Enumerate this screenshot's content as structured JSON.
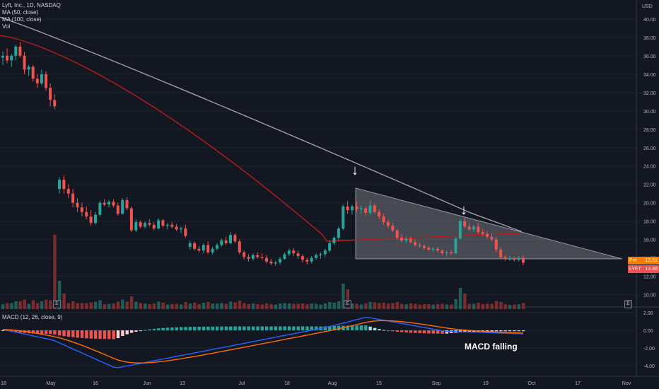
{
  "header": {
    "symbol_line": "Lyft, Inc., 1D, NASDAQ",
    "ma50_label": "MA (50, close)",
    "ma100_label": "MA (100, close)",
    "vol_label": "Vol",
    "macd_label": "MACD (12, 26, close, 9)",
    "currency": "USD"
  },
  "price_tags": {
    "pre": {
      "label": "Pre",
      "value": "13.51",
      "color": "#f57c00"
    },
    "last": {
      "label": "LYFT",
      "value": "13.48",
      "color": "#ef5350"
    }
  },
  "badges": {
    "earnings": "E"
  },
  "annotation": {
    "text": "MACD falling"
  },
  "arrows": {
    "glyph": "↓"
  },
  "colors": {
    "background": "#131722",
    "up": "#26a69a",
    "down": "#ef5350",
    "ma50": "#b71c1c",
    "ma100": "#9e9e9e",
    "macd_line": "#2962ff",
    "signal_line": "#ff6d00",
    "triangle": "#ffffff"
  },
  "chart_data": {
    "type": "candlestick",
    "y_ticks": [
      "40.00",
      "38.00",
      "36.00",
      "34.00",
      "32.00",
      "30.00",
      "28.00",
      "26.00",
      "24.00",
      "22.00",
      "20.00",
      "18.00",
      "16.00",
      "14.00",
      "12.00",
      "10.00"
    ],
    "macd_ticks": [
      "2.00",
      "0.00",
      "-2.00",
      "-4.00"
    ],
    "x_labels": [
      "18",
      "May",
      "16",
      "Jun",
      "13",
      "Jul",
      "18",
      "Aug",
      "15",
      "Sep",
      "19",
      "Oct",
      "17",
      "Nov"
    ],
    "ohlc": [
      [
        35.8,
        36.5,
        35,
        36
      ],
      [
        36,
        36.8,
        35.2,
        35.5
      ],
      [
        35.5,
        36.2,
        34.8,
        36
      ],
      [
        36,
        37.2,
        35.5,
        37
      ],
      [
        37,
        37.5,
        35.8,
        36
      ],
      [
        36,
        36.4,
        34,
        34.5
      ],
      [
        34.5,
        35,
        33.8,
        34.8
      ],
      [
        34.8,
        35,
        33.2,
        33.5
      ],
      [
        33.5,
        34,
        32.5,
        33
      ],
      [
        33,
        34.5,
        32.8,
        34
      ],
      [
        34,
        34.3,
        32.2,
        32.5
      ],
      [
        32.5,
        33,
        30.5,
        31.2
      ],
      [
        31.2,
        31.8,
        30.2,
        30.5
      ],
      [
        21.5,
        22.8,
        21.0,
        22.5
      ],
      [
        22.5,
        23,
        21.0,
        21.5
      ],
      [
        21.5,
        22,
        20.5,
        21
      ],
      [
        21,
        21.5,
        19.5,
        20
      ],
      [
        20,
        20.5,
        19,
        19.5
      ],
      [
        19.5,
        20,
        18.5,
        19
      ],
      [
        19,
        19.6,
        18.2,
        18.5
      ],
      [
        18.5,
        19.2,
        17.5,
        17.8
      ],
      [
        17.8,
        19,
        17.6,
        18.7
      ],
      [
        18.7,
        20.2,
        18.5,
        20
      ],
      [
        20,
        20.4,
        19.6,
        19.8
      ],
      [
        19.8,
        20.3,
        19.5,
        20.1
      ],
      [
        20.1,
        20.4,
        19.5,
        19.7
      ],
      [
        19.7,
        20,
        18.6,
        18.8
      ],
      [
        18.8,
        20.5,
        18.7,
        20.3
      ],
      [
        20.3,
        20.6,
        19.2,
        19.4
      ],
      [
        19.4,
        19.6,
        16.8,
        17
      ],
      [
        17,
        18.2,
        16.8,
        17.9
      ],
      [
        17.9,
        18.1,
        17.2,
        17.4
      ],
      [
        17.4,
        18,
        17.2,
        17.8
      ],
      [
        17.8,
        18.2,
        17.4,
        17.6
      ],
      [
        17.6,
        17.9,
        17,
        17.2
      ],
      [
        17.2,
        18.3,
        17.1,
        18.1
      ],
      [
        18.1,
        18.2,
        17.3,
        17.5
      ],
      [
        17.5,
        17.8,
        17.1,
        17.6
      ],
      [
        17.6,
        17.9,
        17.2,
        17.4
      ],
      [
        17.4,
        17.7,
        16.9,
        17.1
      ],
      [
        17.1,
        17.4,
        16.7,
        17.2
      ],
      [
        17.2,
        17.6,
        16.2,
        16.4
      ],
      [
        15.2,
        15.9,
        14.9,
        15.6
      ],
      [
        15.6,
        15.8,
        14.8,
        15
      ],
      [
        15,
        15.3,
        14.6,
        14.8
      ],
      [
        14.8,
        15.6,
        14.5,
        15.4
      ],
      [
        15.4,
        15.8,
        14.4,
        14.6
      ],
      [
        14.6,
        15.2,
        14.4,
        15
      ],
      [
        15,
        15.6,
        14.8,
        15.4
      ],
      [
        15.4,
        16.1,
        15.2,
        15.9
      ],
      [
        15.9,
        16.3,
        15.4,
        15.6
      ],
      [
        15.6,
        16.8,
        15.5,
        16.5
      ],
      [
        16.5,
        16.7,
        15.6,
        15.8
      ],
      [
        15.8,
        16,
        14.4,
        14.6
      ],
      [
        14.6,
        14.8,
        13.8,
        14.1
      ],
      [
        14.1,
        14.4,
        13.6,
        13.9
      ],
      [
        13.9,
        14.5,
        13.7,
        14.3
      ],
      [
        14.3,
        14.6,
        13.9,
        14.1
      ],
      [
        14.1,
        14.5,
        13.8,
        14
      ],
      [
        14,
        14.3,
        13.4,
        13.6
      ],
      [
        13.6,
        13.9,
        13.2,
        13.4
      ],
      [
        13.4,
        13.7,
        13.1,
        13.5
      ],
      [
        13.5,
        14.1,
        13.3,
        13.9
      ],
      [
        13.9,
        14.6,
        13.8,
        14.4
      ],
      [
        14.4,
        15,
        14.2,
        14.8
      ],
      [
        14.8,
        15.1,
        14.2,
        14.5
      ],
      [
        14.5,
        14.8,
        13.9,
        14.2
      ],
      [
        14.2,
        14.4,
        13.5,
        13.8
      ],
      [
        13.8,
        14,
        13.3,
        13.6
      ],
      [
        13.6,
        14.2,
        13.4,
        14
      ],
      [
        14,
        14.5,
        13.8,
        14.3
      ],
      [
        14.3,
        14.6,
        13.9,
        14.4
      ],
      [
        14.4,
        15,
        14.1,
        14.8
      ],
      [
        14.8,
        15.9,
        14.6,
        15.6
      ],
      [
        15.6,
        16.4,
        15.4,
        16.2
      ],
      [
        16.2,
        17.4,
        15.9,
        17.2
      ],
      [
        17.2,
        19.8,
        17,
        19.6
      ],
      [
        19.6,
        20.2,
        18.8,
        19.2
      ],
      [
        19.2,
        19.8,
        18.7,
        19.6
      ],
      [
        19.6,
        20.1,
        19,
        19.3
      ],
      [
        19.3,
        19.7,
        18.8,
        19.4
      ],
      [
        19.4,
        19.6,
        18.6,
        18.9
      ],
      [
        18.9,
        20.3,
        18.7,
        19.7
      ],
      [
        19.7,
        19.9,
        18.8,
        19
      ],
      [
        19,
        19.3,
        18.2,
        18.5
      ],
      [
        18.5,
        18.8,
        17.6,
        17.9
      ],
      [
        17.9,
        18.2,
        17.2,
        17.5
      ],
      [
        17.5,
        17.8,
        16.8,
        17
      ],
      [
        17,
        17.2,
        16,
        16.2
      ],
      [
        16.2,
        16.6,
        15.7,
        15.9
      ],
      [
        15.9,
        16.3,
        15.6,
        16.1
      ],
      [
        16.1,
        16.3,
        15.6,
        15.7
      ],
      [
        15.7,
        16,
        15.2,
        15.4
      ],
      [
        15.4,
        15.7,
        15.1,
        15.3
      ],
      [
        15.3,
        15.5,
        14.9,
        15.1
      ],
      [
        15.1,
        15.3,
        14.8,
        14.9
      ],
      [
        14.9,
        15.2,
        14.7,
        15
      ],
      [
        15,
        15.2,
        14.6,
        14.8
      ],
      [
        14.8,
        15,
        14.3,
        14.5
      ],
      [
        14.5,
        14.8,
        14.2,
        14.6
      ],
      [
        14.6,
        14.9,
        14.3,
        14.5
      ],
      [
        14.5,
        16.3,
        14.4,
        16.1
      ],
      [
        16.1,
        18.2,
        16,
        18
      ],
      [
        18,
        18.4,
        17.2,
        17.4
      ],
      [
        17.4,
        17.8,
        16.9,
        17.1
      ],
      [
        17.1,
        17.6,
        16.8,
        17.4
      ],
      [
        17.4,
        17.8,
        16.6,
        16.8
      ],
      [
        16.8,
        17.1,
        16.4,
        16.6
      ],
      [
        16.6,
        16.9,
        16.1,
        16.3
      ],
      [
        16.3,
        16.7,
        15.8,
        16
      ],
      [
        16,
        16.3,
        14.6,
        14.9
      ],
      [
        14.9,
        15.2,
        13.9,
        14.1
      ],
      [
        14.1,
        14.4,
        13.7,
        13.9
      ],
      [
        13.9,
        14.2,
        13.7,
        13.9
      ],
      [
        13.9,
        14.1,
        13.6,
        13.8
      ],
      [
        13.8,
        14.2,
        13.6,
        14
      ],
      [
        14,
        14.3,
        13.2,
        13.48
      ]
    ]
  }
}
